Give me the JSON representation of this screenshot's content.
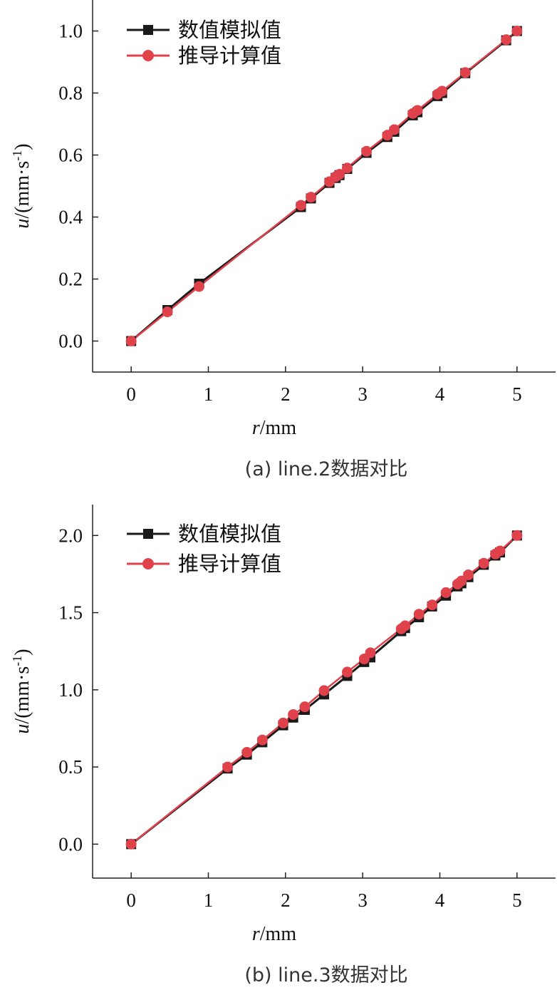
{
  "colors": {
    "sim": "#1a1a1a",
    "calc": "#e0424c"
  },
  "chart_data": [
    {
      "type": "line",
      "caption": "(a) line.2数据对比",
      "xlabel_var": "r",
      "xlabel_unit": "/mm",
      "ylabel_var": "u",
      "ylabel_unit": "/(mm·s",
      "ylabel_sup": "-1",
      "ylabel_close": ")",
      "xlim": [
        -0.5,
        5.5
      ],
      "ylim": [
        -0.1,
        1.1
      ],
      "xticks": [
        0,
        1,
        2,
        3,
        4,
        5
      ],
      "yticks": [
        0.0,
        0.2,
        0.4,
        0.6,
        0.8,
        1.0
      ],
      "xtick_labels": [
        "0",
        "1",
        "2",
        "3",
        "4",
        "5"
      ],
      "ytick_labels": [
        "0.0",
        "0.2",
        "0.4",
        "0.6",
        "0.8",
        "1.0"
      ],
      "legend_position": "top-left",
      "series": [
        {
          "name": "数值模拟值",
          "marker": "square",
          "color": "#1a1a1a",
          "x": [
            0,
            0.47,
            0.88,
            2.2,
            2.33,
            2.57,
            2.65,
            2.7,
            2.8,
            3.05,
            3.32,
            3.41,
            3.65,
            3.71,
            3.97,
            4.03,
            4.33,
            4.86,
            5.0
          ],
          "y": [
            0,
            0.1,
            0.185,
            0.432,
            0.46,
            0.51,
            0.526,
            0.535,
            0.555,
            0.607,
            0.658,
            0.675,
            0.728,
            0.738,
            0.79,
            0.8,
            0.864,
            0.97,
            1.0
          ]
        },
        {
          "name": "推导计算值",
          "marker": "circle",
          "color": "#e0424c",
          "x": [
            0,
            0.47,
            0.88,
            2.2,
            2.33,
            2.57,
            2.65,
            2.7,
            2.8,
            3.05,
            3.32,
            3.41,
            3.65,
            3.71,
            3.97,
            4.03,
            4.33,
            4.86,
            5.0
          ],
          "y": [
            0,
            0.094,
            0.176,
            0.438,
            0.464,
            0.514,
            0.53,
            0.538,
            0.558,
            0.612,
            0.664,
            0.682,
            0.734,
            0.744,
            0.796,
            0.806,
            0.866,
            0.972,
            1.0
          ]
        }
      ]
    },
    {
      "type": "line",
      "caption": "(b) line.3数据对比",
      "xlabel_var": "r",
      "xlabel_unit": "/mm",
      "ylabel_var": "u",
      "ylabel_unit": "/(mm·s",
      "ylabel_sup": "-1",
      "ylabel_close": ")",
      "xlim": [
        -0.5,
        5.5
      ],
      "ylim": [
        -0.22,
        2.2
      ],
      "xticks": [
        0,
        1,
        2,
        3,
        4,
        5
      ],
      "yticks": [
        0.0,
        0.5,
        1.0,
        1.5,
        2.0
      ],
      "xtick_labels": [
        "0",
        "1",
        "2",
        "3",
        "4",
        "5"
      ],
      "ytick_labels": [
        "0.0",
        "0.5",
        "1.0",
        "1.5",
        "2.0"
      ],
      "legend_position": "top-left",
      "series": [
        {
          "name": "数值模拟值",
          "marker": "square",
          "color": "#1a1a1a",
          "x": [
            0,
            1.25,
            1.5,
            1.7,
            1.97,
            2.1,
            2.25,
            2.5,
            2.8,
            3.02,
            3.1,
            3.5,
            3.55,
            3.73,
            3.9,
            4.08,
            4.23,
            4.28,
            4.37,
            4.57,
            4.72,
            4.78,
            5.0
          ],
          "y": [
            0,
            0.49,
            0.58,
            0.66,
            0.77,
            0.82,
            0.87,
            0.97,
            1.09,
            1.18,
            1.21,
            1.38,
            1.4,
            1.47,
            1.54,
            1.61,
            1.67,
            1.69,
            1.73,
            1.81,
            1.87,
            1.89,
            2.0
          ]
        },
        {
          "name": "推导计算值",
          "marker": "circle",
          "color": "#e0424c",
          "x": [
            0,
            1.25,
            1.5,
            1.7,
            1.97,
            2.1,
            2.25,
            2.5,
            2.8,
            3.02,
            3.1,
            3.5,
            3.55,
            3.73,
            3.9,
            4.08,
            4.23,
            4.28,
            4.37,
            4.57,
            4.72,
            4.78,
            5.0
          ],
          "y": [
            0,
            0.5,
            0.595,
            0.675,
            0.785,
            0.84,
            0.89,
            0.995,
            1.115,
            1.2,
            1.24,
            1.395,
            1.415,
            1.49,
            1.55,
            1.63,
            1.685,
            1.705,
            1.745,
            1.82,
            1.88,
            1.9,
            2.0
          ]
        }
      ]
    }
  ]
}
